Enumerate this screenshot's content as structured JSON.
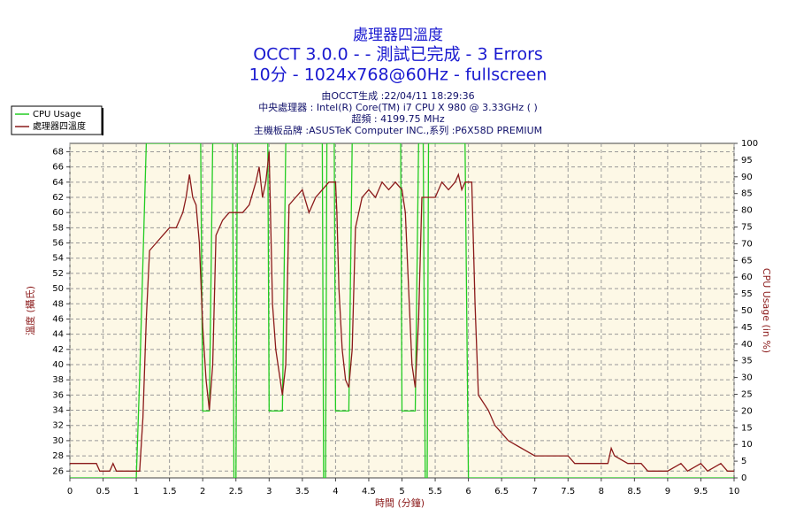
{
  "chart_data": {
    "type": "line",
    "title": "處理器四溫度",
    "subtitle": "OCCT 3.0.0 -  - 測試已完成 - 3 Errors",
    "subtitle2": "10分 - 1024x768@60Hz - fullscreen",
    "info": [
      "由OCCT生成 :22/04/11 18:29:36",
      "中央處理器 : Intel(R) Core(TM) i7 CPU X 980 @ 3.33GHz (  )",
      "超頻 : 4199.75 MHz",
      "主機板品牌 :ASUSTeK Computer INC.,系列 :P6X58D PREMIUM"
    ],
    "xlabel": "時間 (分鐘)",
    "ylabel": "溫度 (攝氏)",
    "y2label": "CPU Usage (in %)",
    "xlim": [
      0,
      10
    ],
    "xticks": [
      0,
      0.5,
      1,
      1.5,
      2,
      2.5,
      3,
      3.5,
      4,
      4.5,
      5,
      5.5,
      6,
      6.5,
      7,
      7.5,
      8,
      8.5,
      9,
      9.5,
      10
    ],
    "ylim": [
      25.1,
      69.1
    ],
    "yticks": [
      26,
      28,
      30,
      32,
      34,
      36,
      38,
      40,
      42,
      44,
      46,
      48,
      50,
      52,
      54,
      56,
      58,
      60,
      62,
      64,
      66,
      68
    ],
    "y2lim": [
      0,
      100
    ],
    "y2ticks": [
      0,
      5,
      10,
      15,
      20,
      25,
      30,
      35,
      40,
      45,
      50,
      55,
      60,
      65,
      70,
      75,
      80,
      85,
      90,
      95,
      100
    ],
    "grid": true,
    "legend": "upper left",
    "series": [
      {
        "name": "CPU Usage",
        "color": "#22cc22",
        "axis": "y2",
        "x": [
          0,
          1.0,
          1.05,
          1.15,
          1.97,
          2.0,
          2.1,
          2.15,
          2.45,
          2.47,
          2.5,
          2.52,
          2.98,
          3.0,
          3.2,
          3.25,
          3.8,
          3.82,
          3.85,
          3.87,
          3.98,
          4.0,
          4.2,
          4.25,
          4.98,
          5.0,
          5.2,
          5.25,
          5.32,
          5.35,
          5.38,
          5.4,
          5.95,
          6.0,
          10
        ],
        "values": [
          0,
          0,
          30,
          100,
          100,
          20,
          20,
          100,
          100,
          0,
          0,
          100,
          100,
          20,
          20,
          100,
          100,
          0,
          0,
          100,
          100,
          20,
          20,
          100,
          100,
          20,
          20,
          100,
          100,
          0,
          0,
          100,
          100,
          0,
          0
        ]
      },
      {
        "name": "處理器四溫度",
        "color": "#8b1a1a",
        "x": [
          0,
          0.4,
          0.45,
          0.6,
          0.65,
          0.7,
          1.0,
          1.05,
          1.1,
          1.15,
          1.2,
          1.3,
          1.4,
          1.5,
          1.6,
          1.7,
          1.75,
          1.8,
          1.85,
          1.9,
          1.95,
          2.0,
          2.05,
          2.1,
          2.15,
          2.2,
          2.3,
          2.4,
          2.5,
          2.6,
          2.7,
          2.8,
          2.85,
          2.9,
          2.95,
          3.0,
          3.02,
          3.05,
          3.1,
          3.2,
          3.25,
          3.3,
          3.4,
          3.5,
          3.6,
          3.7,
          3.8,
          3.9,
          4.0,
          4.02,
          4.05,
          4.1,
          4.15,
          4.2,
          4.25,
          4.3,
          4.4,
          4.5,
          4.6,
          4.7,
          4.8,
          4.9,
          5.0,
          5.05,
          5.1,
          5.15,
          5.2,
          5.25,
          5.3,
          5.4,
          5.5,
          5.6,
          5.7,
          5.8,
          5.85,
          5.9,
          5.95,
          6.0,
          6.05,
          6.1,
          6.15,
          6.3,
          6.4,
          6.5,
          6.6,
          6.8,
          7.0,
          7.3,
          7.5,
          7.6,
          7.8,
          8.1,
          8.15,
          8.2,
          8.4,
          8.6,
          8.7,
          9.0,
          9.2,
          9.3,
          9.5,
          9.6,
          9.8,
          9.9,
          10
        ],
        "values": [
          27,
          27,
          26,
          26,
          27,
          26,
          26,
          26,
          33,
          46,
          55,
          56,
          57,
          58,
          58,
          60,
          62,
          65,
          62,
          61,
          56,
          45,
          38,
          34,
          40,
          57,
          59,
          60,
          60,
          60,
          61,
          64,
          66,
          62,
          64,
          68,
          60,
          48,
          42,
          36,
          40,
          61,
          62,
          63,
          60,
          62,
          63,
          64,
          64,
          60,
          50,
          42,
          38,
          37,
          42,
          58,
          62,
          63,
          62,
          64,
          63,
          64,
          63,
          60,
          50,
          40,
          37,
          46,
          62,
          62,
          62,
          64,
          63,
          64,
          65,
          63,
          64,
          64,
          64,
          48,
          36,
          34,
          32,
          31,
          30,
          29,
          28,
          28,
          28,
          27,
          27,
          27,
          29,
          28,
          27,
          27,
          26,
          26,
          27,
          26,
          27,
          26,
          27,
          26,
          26
        ]
      }
    ]
  }
}
